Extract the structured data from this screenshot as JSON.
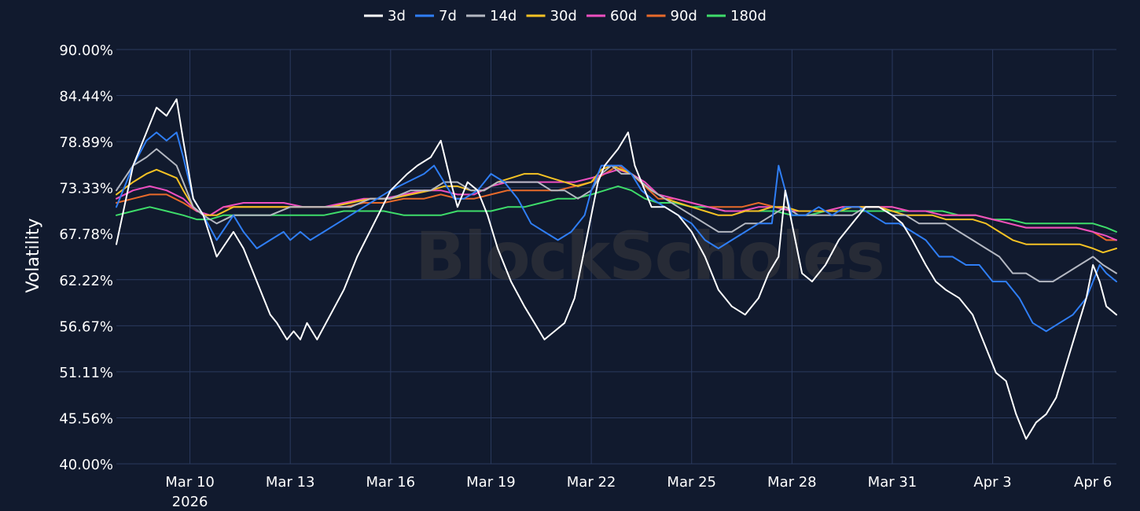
{
  "chart_data": {
    "type": "line",
    "ylabel": "Volatility",
    "xlabel": "",
    "watermark": "BlockScholes",
    "ylim": [
      40.0,
      90.0
    ],
    "y_ticks": [
      "40.00%",
      "45.56%",
      "51.11%",
      "56.67%",
      "62.22%",
      "67.78%",
      "73.33%",
      "78.89%",
      "84.44%",
      "90.00%"
    ],
    "x_range_days": [
      7.8,
      37.7
    ],
    "x_ticks": [
      {
        "day": 10,
        "label": "Mar 10",
        "sublabel": "2026"
      },
      {
        "day": 13,
        "label": "Mar 13",
        "sublabel": ""
      },
      {
        "day": 16,
        "label": "Mar 16",
        "sublabel": ""
      },
      {
        "day": 19,
        "label": "Mar 19",
        "sublabel": ""
      },
      {
        "day": 22,
        "label": "Mar 22",
        "sublabel": ""
      },
      {
        "day": 25,
        "label": "Mar 25",
        "sublabel": ""
      },
      {
        "day": 28,
        "label": "Mar 28",
        "sublabel": ""
      },
      {
        "day": 31,
        "label": "Mar 31",
        "sublabel": ""
      },
      {
        "day": 34,
        "label": "Apr 3",
        "sublabel": ""
      },
      {
        "day": 37,
        "label": "Apr 6",
        "sublabel": ""
      }
    ],
    "grid": true,
    "legend_position": "top-center",
    "colors": {
      "background": "#111a2e",
      "grid": "#2a3a5e",
      "text": "#ffffff",
      "watermark": "#3a3a3e"
    },
    "series": [
      {
        "name": "3d",
        "color": "#ffffff",
        "x": [
          7.8,
          8.3,
          8.7,
          9.0,
          9.3,
          9.6,
          9.8,
          10.1,
          10.4,
          10.8,
          11.3,
          11.6,
          12.0,
          12.4,
          12.6,
          12.9,
          13.1,
          13.3,
          13.5,
          13.8,
          14.2,
          14.6,
          15.0,
          15.5,
          16.0,
          16.5,
          16.8,
          17.2,
          17.5,
          17.8,
          18.0,
          18.3,
          18.6,
          18.9,
          19.2,
          19.6,
          20.0,
          20.3,
          20.6,
          20.9,
          21.2,
          21.5,
          21.8,
          22.0,
          22.2,
          22.4,
          22.6,
          22.8,
          23.1,
          23.3,
          23.5,
          23.8,
          24.2,
          24.6,
          25.0,
          25.4,
          25.8,
          26.2,
          26.6,
          27.0,
          27.3,
          27.6,
          27.8,
          28.0,
          28.3,
          28.6,
          29.0,
          29.4,
          29.8,
          30.2,
          30.6,
          31.0,
          31.3,
          31.6,
          32.0,
          32.3,
          32.6,
          33.0,
          33.4,
          33.8,
          34.1,
          34.4,
          34.7,
          35.0,
          35.3,
          35.6,
          35.9,
          36.2,
          36.5,
          36.8,
          37.0,
          37.2,
          37.4,
          37.7
        ],
        "values": [
          66.5,
          76,
          80,
          83,
          82,
          84,
          79,
          72,
          70,
          65,
          68,
          66,
          62,
          58,
          57,
          55,
          56,
          55,
          57,
          55,
          58,
          61,
          65,
          69,
          73,
          75,
          76,
          77,
          79,
          74,
          71,
          74,
          73,
          70,
          66,
          62,
          59,
          57,
          55,
          56,
          57,
          60,
          66,
          70,
          74,
          76,
          77,
          78,
          80,
          76,
          74,
          71,
          71,
          70,
          68,
          65,
          61,
          59,
          58,
          60,
          63,
          65,
          73,
          69,
          63,
          62,
          64,
          67,
          69,
          71,
          71,
          70,
          69,
          67,
          64,
          62,
          61,
          60,
          58,
          54,
          51,
          50,
          46,
          43,
          45,
          46,
          48,
          52,
          56,
          60,
          64,
          62,
          59,
          58
        ]
      },
      {
        "name": "7d",
        "color": "#2f7ef5",
        "x": [
          7.8,
          8.3,
          8.7,
          9.0,
          9.3,
          9.6,
          9.8,
          10.1,
          10.4,
          10.8,
          11.3,
          11.6,
          12.0,
          12.4,
          12.8,
          13.0,
          13.3,
          13.6,
          14.0,
          14.4,
          14.8,
          15.2,
          15.6,
          16.0,
          16.5,
          17.0,
          17.3,
          17.6,
          17.9,
          18.2,
          18.6,
          19.0,
          19.4,
          19.8,
          20.2,
          20.6,
          21.0,
          21.4,
          21.8,
          22.0,
          22.3,
          22.6,
          22.9,
          23.2,
          23.5,
          23.8,
          24.2,
          24.6,
          25.0,
          25.4,
          25.8,
          26.2,
          26.6,
          27.0,
          27.4,
          27.6,
          27.8,
          28.0,
          28.4,
          28.8,
          29.2,
          29.6,
          30.0,
          30.4,
          30.8,
          31.2,
          31.6,
          32.0,
          32.4,
          32.8,
          33.2,
          33.6,
          34.0,
          34.4,
          34.8,
          35.2,
          35.6,
          36.0,
          36.4,
          36.8,
          37.0,
          37.2,
          37.4,
          37.7
        ],
        "values": [
          71,
          76,
          79,
          80,
          79,
          80,
          77,
          72,
          70,
          67,
          70,
          68,
          66,
          67,
          68,
          67,
          68,
          67,
          68,
          69,
          70,
          71,
          72,
          73,
          74,
          75,
          76,
          74,
          72,
          72,
          73,
          75,
          74,
          72,
          69,
          68,
          67,
          68,
          70,
          73,
          76,
          76,
          76,
          75,
          73,
          72,
          71,
          70,
          69,
          67,
          66,
          67,
          68,
          69,
          69,
          76,
          73,
          70,
          70,
          71,
          70,
          71,
          71,
          70,
          69,
          69,
          68,
          67,
          65,
          65,
          64,
          64,
          62,
          62,
          60,
          57,
          56,
          57,
          58,
          60,
          62,
          64,
          63,
          62
        ]
      },
      {
        "name": "14d",
        "color": "#b4b8c2",
        "x": [
          7.8,
          8.3,
          8.7,
          9.0,
          9.3,
          9.6,
          9.8,
          10.1,
          10.4,
          10.8,
          11.3,
          11.8,
          12.4,
          13.0,
          13.6,
          14.2,
          14.8,
          15.4,
          16.0,
          16.6,
          17.2,
          17.6,
          18.0,
          18.4,
          18.8,
          19.2,
          19.6,
          20.0,
          20.4,
          20.8,
          21.2,
          21.6,
          22.0,
          22.3,
          22.6,
          22.9,
          23.2,
          23.5,
          23.8,
          24.2,
          24.6,
          25.0,
          25.4,
          25.8,
          26.2,
          26.6,
          27.0,
          27.4,
          27.8,
          28.2,
          28.6,
          29.0,
          29.4,
          29.8,
          30.2,
          30.6,
          31.0,
          31.4,
          31.8,
          32.2,
          32.6,
          33.0,
          33.4,
          33.8,
          34.2,
          34.6,
          35.0,
          35.4,
          35.8,
          36.2,
          36.6,
          37.0,
          37.3,
          37.7
        ],
        "values": [
          73,
          76,
          77,
          78,
          77,
          76,
          74,
          71,
          70,
          69,
          70,
          70,
          70,
          71,
          71,
          71,
          71,
          72,
          72,
          73,
          73,
          74,
          74,
          73,
          73,
          74,
          74,
          74,
          74,
          73,
          73,
          72,
          73,
          75,
          76,
          75,
          75,
          74,
          73,
          72,
          71,
          70,
          69,
          68,
          68,
          69,
          69,
          70,
          71,
          70,
          70,
          70,
          70,
          70,
          71,
          71,
          70,
          70,
          69,
          69,
          69,
          68,
          67,
          66,
          65,
          63,
          63,
          62,
          62,
          63,
          64,
          65,
          64,
          63
        ]
      },
      {
        "name": "30d",
        "color": "#f5c224",
        "x": [
          7.8,
          8.3,
          8.7,
          9.0,
          9.3,
          9.6,
          9.8,
          10.1,
          10.4,
          10.8,
          11.3,
          11.8,
          12.4,
          13.0,
          13.6,
          14.2,
          14.8,
          15.4,
          16.0,
          16.6,
          17.2,
          17.6,
          18.0,
          18.4,
          18.8,
          19.2,
          19.6,
          20.0,
          20.4,
          20.8,
          21.2,
          21.6,
          22.0,
          22.3,
          22.6,
          22.9,
          23.2,
          23.5,
          23.8,
          24.2,
          24.6,
          25.0,
          25.4,
          25.8,
          26.2,
          26.6,
          27.0,
          27.4,
          27.8,
          28.2,
          28.6,
          29.0,
          29.4,
          29.8,
          30.2,
          30.6,
          31.0,
          31.4,
          31.8,
          32.2,
          32.6,
          33.0,
          33.4,
          33.8,
          34.2,
          34.6,
          35.0,
          35.4,
          35.8,
          36.2,
          36.6,
          37.0,
          37.3,
          37.7
        ],
        "values": [
          72.5,
          74,
          75,
          75.5,
          75,
          74.5,
          73,
          71,
          70,
          70,
          71,
          71,
          71,
          71,
          71,
          71,
          71.5,
          72,
          72,
          72.5,
          73,
          73.5,
          73.5,
          73,
          73,
          74,
          74.5,
          75,
          75,
          74.5,
          74,
          73.5,
          74,
          75.5,
          76,
          75.5,
          75,
          74,
          73,
          72,
          71.5,
          71,
          70.5,
          70,
          70,
          70.5,
          70.5,
          71,
          71,
          70.5,
          70.5,
          70.5,
          70.5,
          71,
          71,
          71,
          70.5,
          70,
          70,
          70,
          69.5,
          69.5,
          69.5,
          69,
          68,
          67,
          66.5,
          66.5,
          66.5,
          66.5,
          66.5,
          66,
          65.5,
          66
        ]
      },
      {
        "name": "60d",
        "color": "#ee4fc0",
        "x": [
          7.8,
          8.3,
          8.8,
          9.3,
          9.8,
          10.2,
          10.6,
          11.0,
          11.6,
          12.2,
          12.8,
          13.4,
          14.0,
          14.6,
          15.2,
          15.8,
          16.4,
          17.0,
          17.5,
          18.0,
          18.5,
          19.0,
          19.5,
          20.0,
          20.5,
          21.0,
          21.5,
          22.0,
          22.4,
          22.8,
          23.2,
          23.6,
          24.0,
          24.5,
          25.0,
          25.5,
          26.0,
          26.5,
          27.0,
          27.5,
          28.0,
          28.5,
          29.0,
          29.5,
          30.0,
          30.5,
          31.0,
          31.5,
          32.0,
          32.5,
          33.0,
          33.5,
          34.0,
          34.5,
          35.0,
          35.5,
          36.0,
          36.5,
          37.0,
          37.4,
          37.7
        ],
        "values": [
          72,
          73,
          73.5,
          73,
          72,
          70.5,
          70,
          71,
          71.5,
          71.5,
          71.5,
          71,
          71,
          71.5,
          72,
          72,
          72.5,
          73,
          73,
          72.5,
          72.5,
          73.5,
          74,
          74,
          74,
          74,
          74,
          74.5,
          75,
          75.5,
          75,
          74,
          72.5,
          72,
          71.5,
          71,
          70.5,
          70.5,
          71,
          71,
          70.5,
          70.5,
          70.5,
          71,
          71,
          71,
          71,
          70.5,
          70.5,
          70,
          70,
          70,
          69.5,
          69,
          68.5,
          68.5,
          68.5,
          68.5,
          68,
          67.5,
          67
        ]
      },
      {
        "name": "90d",
        "color": "#e86a2a",
        "x": [
          7.8,
          8.3,
          8.8,
          9.3,
          9.8,
          10.2,
          10.6,
          11.0,
          11.6,
          12.2,
          12.8,
          13.4,
          14.0,
          14.6,
          15.2,
          15.8,
          16.4,
          17.0,
          17.5,
          18.0,
          18.5,
          19.0,
          19.5,
          20.0,
          20.5,
          21.0,
          21.5,
          22.0,
          22.4,
          22.8,
          23.2,
          23.6,
          24.0,
          24.5,
          25.0,
          25.5,
          26.0,
          26.5,
          27.0,
          27.5,
          28.0,
          28.5,
          29.0,
          29.5,
          30.0,
          30.5,
          31.0,
          31.5,
          32.0,
          32.5,
          33.0,
          33.5,
          34.0,
          34.5,
          35.0,
          35.5,
          36.0,
          36.5,
          37.0,
          37.4,
          37.7
        ],
        "values": [
          71.5,
          72,
          72.5,
          72.5,
          71.5,
          70.5,
          70,
          71,
          71,
          71,
          71,
          71,
          71,
          71,
          71.5,
          71.5,
          72,
          72,
          72.5,
          72,
          72,
          72.5,
          73,
          73,
          73,
          73,
          73.5,
          74,
          75,
          76,
          75,
          73.5,
          72,
          72,
          71.5,
          71,
          71,
          71,
          71.5,
          71,
          70.5,
          70.5,
          70.5,
          71,
          71,
          71,
          71,
          70.5,
          70.5,
          70,
          70,
          70,
          69.5,
          69,
          68.5,
          68.5,
          68.5,
          68.5,
          68,
          67,
          67
        ]
      },
      {
        "name": "180d",
        "color": "#3edc6a",
        "x": [
          7.8,
          8.3,
          8.8,
          9.3,
          9.8,
          10.2,
          10.6,
          11.0,
          11.6,
          12.2,
          12.8,
          13.4,
          14.0,
          14.6,
          15.2,
          15.8,
          16.4,
          17.0,
          17.5,
          18.0,
          18.5,
          19.0,
          19.5,
          20.0,
          20.5,
          21.0,
          21.5,
          22.0,
          22.4,
          22.8,
          23.2,
          23.6,
          24.0,
          24.5,
          25.0,
          25.5,
          26.0,
          26.5,
          27.0,
          27.5,
          28.0,
          28.5,
          29.0,
          29.5,
          30.0,
          30.5,
          31.0,
          31.5,
          32.0,
          32.5,
          33.0,
          33.5,
          34.0,
          34.5,
          35.0,
          35.5,
          36.0,
          36.5,
          37.0,
          37.4,
          37.7
        ],
        "values": [
          70,
          70.5,
          71,
          70.5,
          70,
          69.5,
          69.5,
          70,
          70,
          70,
          70,
          70,
          70,
          70.5,
          70.5,
          70.5,
          70,
          70,
          70,
          70.5,
          70.5,
          70.5,
          71,
          71,
          71.5,
          72,
          72,
          72.5,
          73,
          73.5,
          73,
          72,
          71.5,
          71.5,
          71,
          71,
          70.5,
          70.5,
          70.5,
          70.5,
          70,
          70,
          70.5,
          70.5,
          70.5,
          70.5,
          70.5,
          70.5,
          70.5,
          70.5,
          70,
          70,
          69.5,
          69.5,
          69,
          69,
          69,
          69,
          69,
          68.5,
          68
        ]
      }
    ]
  }
}
